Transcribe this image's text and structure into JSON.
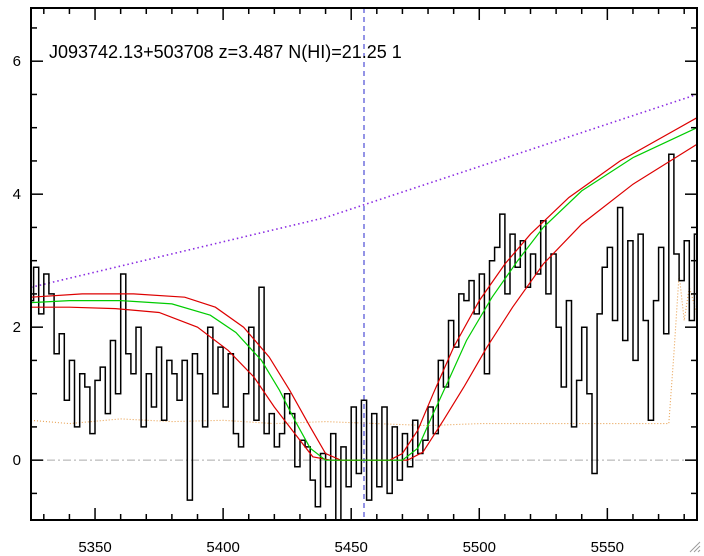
{
  "chart_data": {
    "type": "line",
    "title": "J093742.13+503708 z=3.487 N(HI)=21.25 1",
    "xlabel": "",
    "ylabel": "",
    "xlim": [
      5325,
      5585
    ],
    "ylim": [
      -0.9,
      6.8
    ],
    "xticks": [
      5350,
      5400,
      5450,
      5500,
      5550
    ],
    "yticks": [
      0,
      2,
      4,
      6
    ],
    "grid": false,
    "legend": "none",
    "zero_line_y": 0,
    "center_marker_x": 5455,
    "colors": {
      "flux": "#000000",
      "continuum": "#8a2be2",
      "fit": "#00cc00",
      "fit_bounds": "#dd0000",
      "error": "#e8a050",
      "center_marker": "#2a2acc",
      "zero_line": "#aaaaaa"
    },
    "series": [
      {
        "values": [
          [
            5325,
            2.4
          ],
          [
            5327,
            2.9
          ],
          [
            5329,
            2.2
          ],
          [
            5331,
            2.8
          ],
          [
            5333,
            2.5
          ],
          [
            5335,
            1.6
          ],
          [
            5337,
            1.9
          ],
          [
            5339,
            0.9
          ],
          [
            5341,
            1.5
          ],
          [
            5343,
            0.5
          ],
          [
            5345,
            1.3
          ],
          [
            5347,
            1.1
          ],
          [
            5349,
            0.4
          ],
          [
            5351,
            1.2
          ],
          [
            5353,
            1.4
          ],
          [
            5355,
            0.7
          ],
          [
            5357,
            1.8
          ],
          [
            5359,
            1.0
          ],
          [
            5361,
            2.8
          ],
          [
            5363,
            1.6
          ],
          [
            5365,
            1.3
          ],
          [
            5367,
            2.0
          ],
          [
            5369,
            0.5
          ],
          [
            5371,
            1.3
          ],
          [
            5373,
            0.8
          ],
          [
            5375,
            1.7
          ],
          [
            5377,
            0.6
          ],
          [
            5379,
            1.5
          ],
          [
            5381,
            1.3
          ],
          [
            5383,
            0.9
          ],
          [
            5385,
            1.5
          ],
          [
            5387,
            -0.6
          ],
          [
            5389,
            1.6
          ],
          [
            5391,
            1.3
          ],
          [
            5393,
            0.5
          ],
          [
            5395,
            2.0
          ],
          [
            5397,
            1.0
          ],
          [
            5399,
            1.7
          ],
          [
            5401,
            0.8
          ],
          [
            5403,
            1.6
          ],
          [
            5405,
            0.4
          ],
          [
            5407,
            0.2
          ],
          [
            5409,
            1.0
          ],
          [
            5411,
            2.0
          ],
          [
            5413,
            0.6
          ],
          [
            5415,
            2.6
          ],
          [
            5417,
            0.4
          ],
          [
            5419,
            0.7
          ],
          [
            5421,
            0.2
          ],
          [
            5423,
            0.4
          ],
          [
            5425,
            1.0
          ],
          [
            5427,
            0.7
          ],
          [
            5429,
            -0.1
          ],
          [
            5431,
            0.3
          ],
          [
            5433,
            0.2
          ],
          [
            5435,
            -0.3
          ],
          [
            5437,
            -0.7
          ],
          [
            5439,
            0.1
          ],
          [
            5441,
            -0.4
          ],
          [
            5443,
            0.4
          ],
          [
            5445,
            -0.9
          ],
          [
            5447,
            0.2
          ],
          [
            5449,
            -0.4
          ],
          [
            5451,
            0.8
          ],
          [
            5453,
            -0.2
          ],
          [
            5455,
            0.9
          ],
          [
            5457,
            -0.6
          ],
          [
            5459,
            0.7
          ],
          [
            5461,
            -0.4
          ],
          [
            5463,
            0.8
          ],
          [
            5465,
            -0.5
          ],
          [
            5467,
            0.5
          ],
          [
            5469,
            -0.3
          ],
          [
            5471,
            0.4
          ],
          [
            5473,
            -0.1
          ],
          [
            5475,
            0.6
          ],
          [
            5477,
            0.1
          ],
          [
            5479,
            0.3
          ],
          [
            5481,
            0.8
          ],
          [
            5483,
            0.4
          ],
          [
            5485,
            1.5
          ],
          [
            5487,
            1.1
          ],
          [
            5489,
            2.1
          ],
          [
            5491,
            1.7
          ],
          [
            5493,
            2.5
          ],
          [
            5495,
            2.4
          ],
          [
            5497,
            2.7
          ],
          [
            5499,
            2.2
          ],
          [
            5501,
            2.8
          ],
          [
            5503,
            1.3
          ],
          [
            5505,
            3.0
          ],
          [
            5507,
            3.2
          ],
          [
            5509,
            3.7
          ],
          [
            5511,
            2.5
          ],
          [
            5513,
            3.4
          ],
          [
            5515,
            2.9
          ],
          [
            5517,
            3.3
          ],
          [
            5519,
            2.6
          ],
          [
            5521,
            3.1
          ],
          [
            5523,
            2.8
          ],
          [
            5525,
            3.6
          ],
          [
            5527,
            2.5
          ],
          [
            5529,
            3.1
          ],
          [
            5531,
            2.0
          ],
          [
            5533,
            1.1
          ],
          [
            5535,
            2.4
          ],
          [
            5537,
            0.5
          ],
          [
            5539,
            1.2
          ],
          [
            5541,
            2.0
          ],
          [
            5543,
            1.0
          ],
          [
            5545,
            -0.2
          ],
          [
            5547,
            2.2
          ],
          [
            5549,
            2.9
          ],
          [
            5551,
            3.2
          ],
          [
            5553,
            2.1
          ],
          [
            5555,
            3.8
          ],
          [
            5557,
            1.8
          ],
          [
            5559,
            3.3
          ],
          [
            5561,
            1.5
          ],
          [
            5563,
            3.4
          ],
          [
            5565,
            2.1
          ],
          [
            5567,
            0.6
          ],
          [
            5569,
            2.4
          ],
          [
            5571,
            3.2
          ],
          [
            5573,
            1.9
          ],
          [
            5575,
            4.6
          ],
          [
            5577,
            3.1
          ],
          [
            5579,
            2.7
          ],
          [
            5581,
            3.3
          ],
          [
            5583,
            2.1
          ],
          [
            5585,
            3.4
          ]
        ]
      },
      {
        "values": [
          [
            5325,
            2.6
          ],
          [
            5440,
            3.65
          ],
          [
            5585,
            5.5
          ]
        ]
      },
      {
        "values": [
          [
            5325,
            2.37
          ],
          [
            5340,
            2.4
          ],
          [
            5360,
            2.4
          ],
          [
            5380,
            2.35
          ],
          [
            5395,
            2.18
          ],
          [
            5405,
            1.92
          ],
          [
            5415,
            1.5
          ],
          [
            5422,
            1.05
          ],
          [
            5428,
            0.6
          ],
          [
            5434,
            0.18
          ],
          [
            5440,
            0.0
          ],
          [
            5455,
            0.0
          ],
          [
            5470,
            0.0
          ],
          [
            5476,
            0.18
          ],
          [
            5482,
            0.7
          ],
          [
            5488,
            1.2
          ],
          [
            5495,
            1.8
          ],
          [
            5505,
            2.45
          ],
          [
            5515,
            3.0
          ],
          [
            5525,
            3.5
          ],
          [
            5540,
            4.05
          ],
          [
            5560,
            4.55
          ],
          [
            5585,
            5.0
          ]
        ]
      },
      {
        "values": [
          [
            5325,
            2.45
          ],
          [
            5345,
            2.5
          ],
          [
            5365,
            2.5
          ],
          [
            5385,
            2.45
          ],
          [
            5397,
            2.3
          ],
          [
            5408,
            2.0
          ],
          [
            5418,
            1.55
          ],
          [
            5426,
            1.05
          ],
          [
            5434,
            0.5
          ],
          [
            5440,
            0.1
          ],
          [
            5446,
            0.0
          ],
          [
            5455,
            0.0
          ],
          [
            5465,
            0.0
          ],
          [
            5470,
            0.1
          ],
          [
            5476,
            0.45
          ],
          [
            5482,
            1.0
          ],
          [
            5490,
            1.7
          ],
          [
            5500,
            2.4
          ],
          [
            5510,
            2.95
          ],
          [
            5520,
            3.4
          ],
          [
            5535,
            3.95
          ],
          [
            5555,
            4.5
          ],
          [
            5585,
            5.15
          ]
        ]
      },
      {
        "values": [
          [
            5325,
            2.3
          ],
          [
            5340,
            2.3
          ],
          [
            5358,
            2.28
          ],
          [
            5375,
            2.22
          ],
          [
            5390,
            2.0
          ],
          [
            5402,
            1.65
          ],
          [
            5412,
            1.25
          ],
          [
            5420,
            0.8
          ],
          [
            5428,
            0.4
          ],
          [
            5435,
            0.05
          ],
          [
            5442,
            0.0
          ],
          [
            5455,
            0.0
          ],
          [
            5472,
            0.0
          ],
          [
            5478,
            0.12
          ],
          [
            5486,
            0.6
          ],
          [
            5494,
            1.1
          ],
          [
            5503,
            1.7
          ],
          [
            5513,
            2.3
          ],
          [
            5525,
            2.95
          ],
          [
            5540,
            3.55
          ],
          [
            5560,
            4.15
          ],
          [
            5585,
            4.75
          ]
        ]
      },
      {
        "values": [
          [
            5325,
            0.6
          ],
          [
            5340,
            0.55
          ],
          [
            5360,
            0.62
          ],
          [
            5380,
            0.58
          ],
          [
            5400,
            0.6
          ],
          [
            5420,
            0.55
          ],
          [
            5440,
            0.58
          ],
          [
            5460,
            0.55
          ],
          [
            5480,
            0.52
          ],
          [
            5500,
            0.55
          ],
          [
            5520,
            0.55
          ],
          [
            5540,
            0.55
          ],
          [
            5560,
            0.55
          ],
          [
            5574,
            0.55
          ],
          [
            5576,
            1.6
          ],
          [
            5578,
            2.8
          ],
          [
            5580,
            2.1
          ],
          [
            5582,
            2.6
          ],
          [
            5585,
            2.2
          ]
        ]
      }
    ]
  }
}
